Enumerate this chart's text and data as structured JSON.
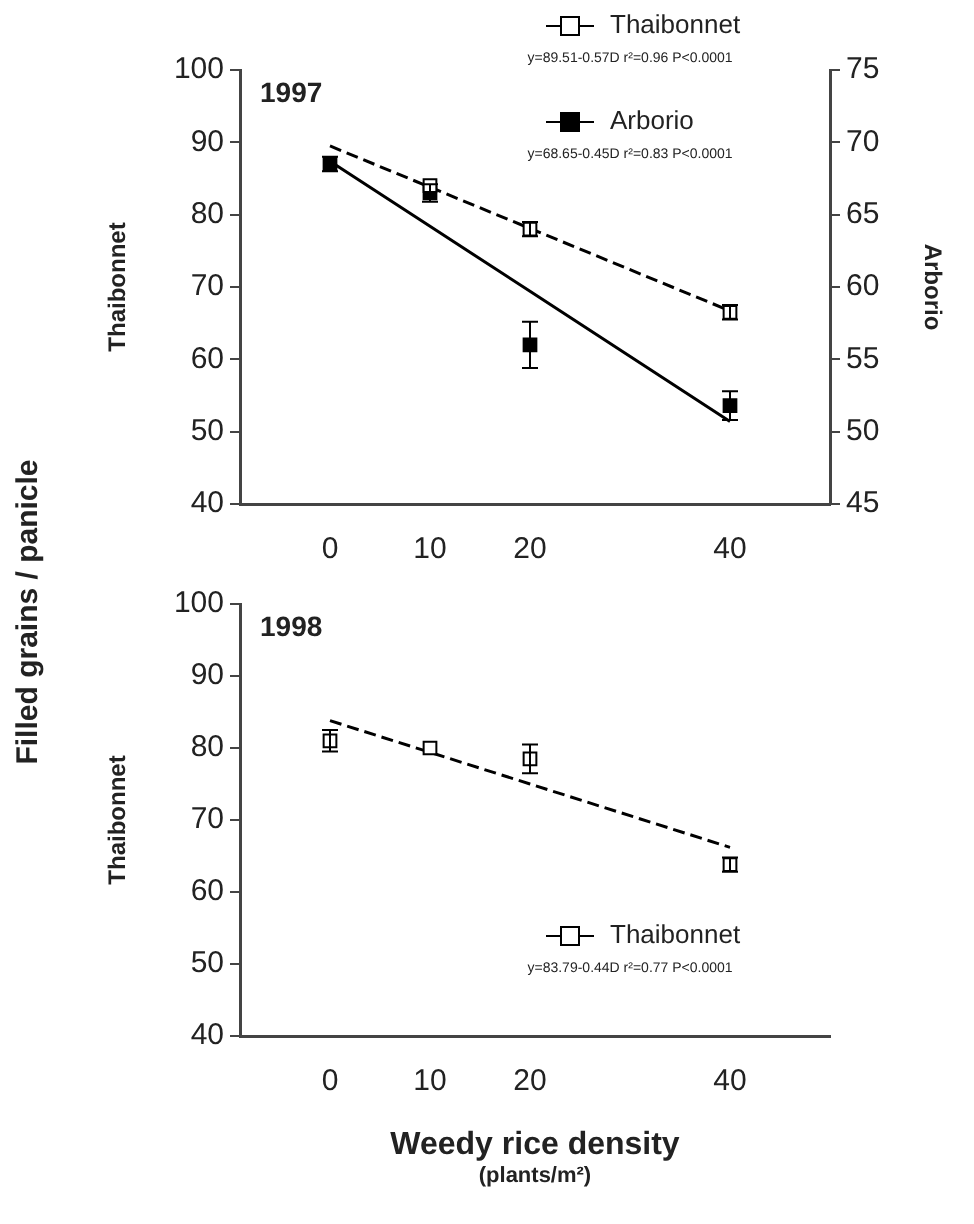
{
  "chart_data": [
    {
      "type": "scatter",
      "title": "1997",
      "ylabel": "Thaibonnet",
      "y2label": "Arborio",
      "x": [
        0,
        10,
        20,
        40
      ],
      "xlim": [
        -9,
        50
      ],
      "xticks": [
        0,
        10,
        20,
        40
      ],
      "ylim": [
        40,
        100
      ],
      "yticks": [
        40,
        50,
        60,
        70,
        80,
        90,
        100
      ],
      "y2lim": [
        45,
        75
      ],
      "y2ticks": [
        45,
        50,
        55,
        60,
        65,
        70,
        75
      ],
      "grid": false,
      "legend": "top right",
      "annotations": [
        "y=89.51-0.57D r²=0.96 P<0.0001",
        "y=68.65-0.45D r²=0.83 P<0.0001",
        "Filled grains / panicle"
      ],
      "series": [
        {
          "name": "Thaibonnet",
          "marker": "square",
          "color": "#ffffff",
          "values": [
            null,
            84,
            78,
            66.5
          ],
          "errors": [
            null,
            null,
            1,
            1
          ]
        },
        {
          "name": "Arborio",
          "marker": "square",
          "color": "#000000",
          "axis": "y2",
          "values": [
            68.5,
            66.5,
            56,
            51.8
          ],
          "errors": [
            0.5,
            0.6,
            1.6,
            1
          ]
        },
        {
          "type": "line",
          "line_style": "dashed",
          "color": "#000000",
          "values": [
            89.5,
            83.8,
            78.1,
            66.7
          ]
        },
        {
          "type": "line",
          "line_style": "solid",
          "color": "#000000",
          "axis": "y2",
          "values": [
            68.7,
            64.2,
            59.7,
            50.7
          ]
        }
      ]
    },
    {
      "type": "scatter",
      "title": "1998",
      "ylabel": "Thaibonnet",
      "xlabel": "Weedy rice density\n(plants/m²)",
      "x": [
        0,
        10,
        20,
        40
      ],
      "xlim": [
        -9,
        50
      ],
      "xticks": [
        0,
        10,
        20,
        40
      ],
      "ylim": [
        40,
        100
      ],
      "yticks": [
        40,
        50,
        60,
        70,
        80,
        90,
        100
      ],
      "grid": false,
      "legend": "bottom right",
      "annotations": [
        "y=83.79-0.44D r²=0.77 P<0.0001"
      ],
      "series": [
        {
          "name": "Thaibonnet",
          "marker": "square",
          "color": "#ffffff",
          "values": [
            81,
            80,
            78.5,
            63.8
          ],
          "errors": [
            1.5,
            null,
            2,
            1
          ]
        },
        {
          "type": "line",
          "line_style": "dashed",
          "color": "#000000",
          "values": [
            83.8,
            79.4,
            75.0,
            66.2
          ]
        }
      ]
    }
  ]
}
